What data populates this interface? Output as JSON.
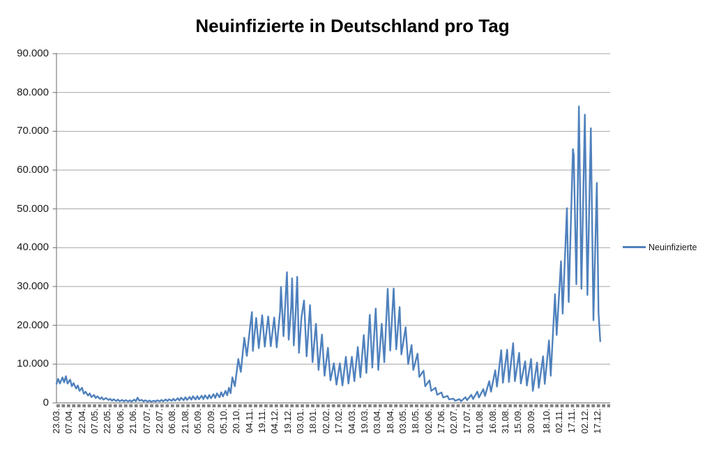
{
  "chart_data": {
    "type": "line",
    "title": "Neuinfizierte in Deutschland pro Tag",
    "xlabel": "",
    "ylabel": "",
    "grid": "horizontal",
    "legend_position": "right",
    "colors": {
      "series": "#4F81BD",
      "gridline": "#A6A6A6",
      "axis": "#808080",
      "tick_strip": "#808080",
      "text": "#1A1A1A",
      "background": "#FFFFFF"
    },
    "y_axis": {
      "min": 0,
      "max": 90000,
      "step": 10000,
      "tick_labels": [
        "0",
        "10.000",
        "20.000",
        "30.000",
        "40.000",
        "50.000",
        "60.000",
        "70.000",
        "80.000",
        "90.000"
      ]
    },
    "x_axis": {
      "total_days": 638,
      "tick_labels": [
        "23.03.",
        "07.04.",
        "22.04.",
        "07.05.",
        "22.05.",
        "06.06.",
        "21.06.",
        "07.07.",
        "22.07.",
        "06.08.",
        "21.08.",
        "05.09.",
        "20.09.",
        "05.10.",
        "20.10.",
        "04.11.",
        "19.11.",
        "04.12.",
        "19.12.",
        "03.01.",
        "18.01.",
        "02.02.",
        "17.02.",
        "04.03.",
        "19.03.",
        "03.04.",
        "18.04.",
        "03.05.",
        "18.05.",
        "02.06.",
        "17.06.",
        "02.07.",
        "17.07.",
        "01.08.",
        "16.08.",
        "31.08.",
        "15.09.",
        "30.09.",
        "18.10.",
        "02.11.",
        "17.11.",
        "02.12.",
        "17.12."
      ],
      "tick_label_days": [
        0,
        15,
        30,
        45,
        60,
        75,
        90,
        106,
        121,
        136,
        151,
        166,
        181,
        196,
        211,
        226,
        241,
        256,
        271,
        286,
        301,
        316,
        331,
        346,
        361,
        376,
        391,
        406,
        421,
        436,
        451,
        466,
        481,
        496,
        511,
        526,
        541,
        556,
        574,
        589,
        604,
        619,
        634
      ]
    },
    "series": [
      {
        "name": "Neuinfizierte",
        "color": "#4F81BD",
        "points": [
          [
            0,
            4900
          ],
          [
            2,
            6200
          ],
          [
            4,
            5000
          ],
          [
            7,
            6550
          ],
          [
            9,
            5300
          ],
          [
            11,
            6900
          ],
          [
            13,
            5000
          ],
          [
            16,
            6000
          ],
          [
            18,
            4300
          ],
          [
            20,
            5100
          ],
          [
            23,
            3700
          ],
          [
            25,
            4500
          ],
          [
            27,
            3100
          ],
          [
            30,
            3900
          ],
          [
            32,
            2350
          ],
          [
            34,
            2900
          ],
          [
            37,
            1900
          ],
          [
            39,
            2450
          ],
          [
            41,
            1500
          ],
          [
            44,
            2050
          ],
          [
            46,
            1250
          ],
          [
            48,
            1700
          ],
          [
            51,
            1000
          ],
          [
            53,
            1450
          ],
          [
            55,
            850
          ],
          [
            58,
            1250
          ],
          [
            61,
            750
          ],
          [
            63,
            1050
          ],
          [
            65,
            580
          ],
          [
            67,
            950
          ],
          [
            70,
            480
          ],
          [
            72,
            850
          ],
          [
            74,
            430
          ],
          [
            77,
            780
          ],
          [
            79,
            380
          ],
          [
            81,
            720
          ],
          [
            84,
            370
          ],
          [
            86,
            680
          ],
          [
            88,
            330
          ],
          [
            91,
            850
          ],
          [
            93,
            430
          ],
          [
            95,
            1350
          ],
          [
            97,
            580
          ],
          [
            100,
            780
          ],
          [
            102,
            380
          ],
          [
            104,
            680
          ],
          [
            107,
            330
          ],
          [
            109,
            630
          ],
          [
            111,
            300
          ],
          [
            114,
            580
          ],
          [
            116,
            340
          ],
          [
            118,
            680
          ],
          [
            121,
            390
          ],
          [
            123,
            780
          ],
          [
            125,
            440
          ],
          [
            128,
            880
          ],
          [
            130,
            490
          ],
          [
            132,
            930
          ],
          [
            135,
            540
          ],
          [
            137,
            1050
          ],
          [
            139,
            580
          ],
          [
            142,
            1200
          ],
          [
            144,
            630
          ],
          [
            146,
            1350
          ],
          [
            149,
            680
          ],
          [
            151,
            1450
          ],
          [
            153,
            780
          ],
          [
            156,
            1550
          ],
          [
            158,
            830
          ],
          [
            160,
            1700
          ],
          [
            163,
            880
          ],
          [
            165,
            1750
          ],
          [
            167,
            930
          ],
          [
            170,
            1850
          ],
          [
            172,
            980
          ],
          [
            174,
            1950
          ],
          [
            177,
            1080
          ],
          [
            179,
            2050
          ],
          [
            181,
            1180
          ],
          [
            184,
            2250
          ],
          [
            186,
            1280
          ],
          [
            188,
            2450
          ],
          [
            191,
            1480
          ],
          [
            193,
            2750
          ],
          [
            195,
            1650
          ],
          [
            198,
            3100
          ],
          [
            200,
            1950
          ],
          [
            202,
            3900
          ],
          [
            204,
            2500
          ],
          [
            206,
            6600
          ],
          [
            209,
            4300
          ],
          [
            213,
            11300
          ],
          [
            216,
            8000
          ],
          [
            220,
            16800
          ],
          [
            223,
            12100
          ],
          [
            227,
            20000
          ],
          [
            229,
            23400
          ],
          [
            230,
            13400
          ],
          [
            234,
            21900
          ],
          [
            237,
            14100
          ],
          [
            241,
            22600
          ],
          [
            244,
            14500
          ],
          [
            248,
            22300
          ],
          [
            251,
            14600
          ],
          [
            255,
            22000
          ],
          [
            258,
            14300
          ],
          [
            262,
            23700
          ],
          [
            263,
            29900
          ],
          [
            266,
            17200
          ],
          [
            270,
            33700
          ],
          [
            272,
            16300
          ],
          [
            275,
            24700
          ],
          [
            276,
            32100
          ],
          [
            278,
            14800
          ],
          [
            280,
            22500
          ],
          [
            282,
            32500
          ],
          [
            284,
            12900
          ],
          [
            287,
            22000
          ],
          [
            290,
            26400
          ],
          [
            293,
            12000
          ],
          [
            297,
            25200
          ],
          [
            300,
            10500
          ],
          [
            304,
            20400
          ],
          [
            307,
            8500
          ],
          [
            311,
            17600
          ],
          [
            314,
            7000
          ],
          [
            318,
            14200
          ],
          [
            321,
            5800
          ],
          [
            325,
            10200
          ],
          [
            328,
            4700
          ],
          [
            332,
            10200
          ],
          [
            335,
            4500
          ],
          [
            339,
            11900
          ],
          [
            342,
            5000
          ],
          [
            346,
            11900
          ],
          [
            349,
            5600
          ],
          [
            353,
            14400
          ],
          [
            356,
            6600
          ],
          [
            360,
            17500
          ],
          [
            363,
            7700
          ],
          [
            367,
            22700
          ],
          [
            370,
            9100
          ],
          [
            374,
            24300
          ],
          [
            377,
            8500
          ],
          [
            381,
            20400
          ],
          [
            384,
            10500
          ],
          [
            388,
            29400
          ],
          [
            391,
            13500
          ],
          [
            395,
            29500
          ],
          [
            398,
            13800
          ],
          [
            402,
            24700
          ],
          [
            404,
            12500
          ],
          [
            409,
            19500
          ],
          [
            412,
            10000
          ],
          [
            416,
            14900
          ],
          [
            418,
            8500
          ],
          [
            423,
            12700
          ],
          [
            425,
            6700
          ],
          [
            430,
            8300
          ],
          [
            432,
            4300
          ],
          [
            437,
            5800
          ],
          [
            439,
            3100
          ],
          [
            444,
            3900
          ],
          [
            446,
            2100
          ],
          [
            451,
            2700
          ],
          [
            453,
            1400
          ],
          [
            458,
            1800
          ],
          [
            460,
            900
          ],
          [
            465,
            1100
          ],
          [
            467,
            560
          ],
          [
            472,
            970
          ],
          [
            474,
            440
          ],
          [
            479,
            1450
          ],
          [
            481,
            700
          ],
          [
            486,
            2090
          ],
          [
            488,
            1000
          ],
          [
            493,
            2900
          ],
          [
            495,
            1400
          ],
          [
            500,
            3540
          ],
          [
            502,
            1800
          ],
          [
            507,
            5600
          ],
          [
            509,
            2900
          ],
          [
            514,
            8400
          ],
          [
            516,
            4200
          ],
          [
            521,
            13600
          ],
          [
            523,
            5200
          ],
          [
            528,
            13700
          ],
          [
            530,
            5400
          ],
          [
            535,
            15400
          ],
          [
            537,
            5600
          ],
          [
            542,
            12900
          ],
          [
            544,
            5000
          ],
          [
            549,
            10700
          ],
          [
            551,
            4500
          ],
          [
            556,
            11300
          ],
          [
            558,
            3100
          ],
          [
            563,
            10400
          ],
          [
            565,
            3900
          ],
          [
            570,
            12000
          ],
          [
            572,
            4900
          ],
          [
            577,
            16100
          ],
          [
            579,
            7000
          ],
          [
            584,
            28000
          ],
          [
            586,
            17500
          ],
          [
            591,
            36500
          ],
          [
            593,
            23000
          ],
          [
            598,
            50200
          ],
          [
            600,
            26000
          ],
          [
            605,
            65400
          ],
          [
            606,
            63900
          ],
          [
            609,
            30600
          ],
          [
            612,
            76400
          ],
          [
            615,
            29400
          ],
          [
            619,
            74300
          ],
          [
            622,
            27800
          ],
          [
            626,
            70800
          ],
          [
            629,
            21300
          ],
          [
            633,
            56700
          ],
          [
            635,
            23300
          ],
          [
            637,
            15900
          ]
        ]
      }
    ]
  }
}
